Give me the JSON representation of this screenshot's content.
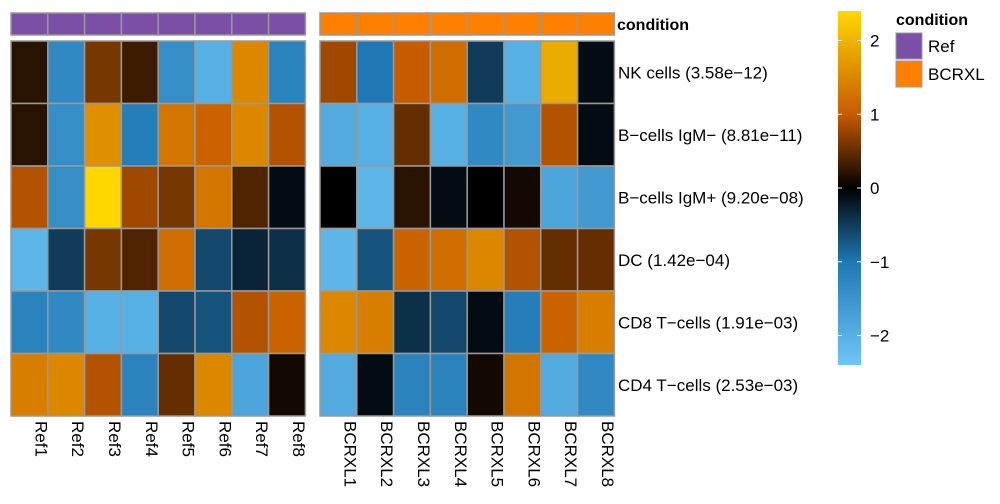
{
  "chart_data": {
    "type": "heatmap",
    "annotation_title": "condition",
    "groups": [
      {
        "name": "Ref",
        "color": "#7B4FA6",
        "columns": [
          "Ref1",
          "Ref2",
          "Ref3",
          "Ref4",
          "Ref5",
          "Ref6",
          "Ref7",
          "Ref8"
        ]
      },
      {
        "name": "BCRXL",
        "color": "#FF7F00",
        "columns": [
          "BCRXL1",
          "BCRXL2",
          "BCRXL3",
          "BCRXL4",
          "BCRXL5",
          "BCRXL6",
          "BCRXL7",
          "BCRXL8"
        ]
      }
    ],
    "rows": [
      "NK cells (3.58e−12)",
      "B−cells IgM− (8.81e−11)",
      "B−cells IgM+ (9.20e−08)",
      "DC (1.42e−04)",
      "CD8 T−cells (1.91e−03)",
      "CD4 T−cells (2.53e−03)"
    ],
    "values": [
      [
        0.2,
        -1.3,
        0.6,
        0.3,
        -1.4,
        -2.0,
        1.5,
        -1.2,
        0.8,
        -1.0,
        1.0,
        1.2,
        -0.5,
        -2.0,
        1.9,
        -0.1
      ],
      [
        0.2,
        -1.4,
        1.6,
        -1.1,
        1.3,
        1.1,
        1.5,
        0.9,
        -1.9,
        -2.0,
        0.5,
        -2.0,
        -1.3,
        -1.6,
        0.9,
        -0.1
      ],
      [
        0.9,
        -1.4,
        2.4,
        0.8,
        0.6,
        1.3,
        0.4,
        -0.1,
        0.0,
        -2.1,
        0.2,
        -0.1,
        0.0,
        0.1,
        -1.8,
        -1.6
      ],
      [
        -2.1,
        -0.5,
        0.6,
        0.4,
        1.2,
        -0.6,
        -0.3,
        -0.4,
        -2.1,
        -0.7,
        1.1,
        1.2,
        1.5,
        0.9,
        0.5,
        0.5
      ],
      [
        -1.2,
        -1.3,
        -2.0,
        -2.0,
        -0.6,
        -0.7,
        0.9,
        1.1,
        1.5,
        1.4,
        -0.4,
        -0.6,
        -0.1,
        -1.1,
        1.1,
        1.4
      ],
      [
        1.4,
        1.5,
        0.9,
        -1.2,
        0.5,
        1.5,
        -1.8,
        0.1,
        -1.9,
        -0.1,
        -1.2,
        -1.2,
        0.1,
        1.3,
        -1.9,
        -1.3
      ]
    ],
    "color_scale": {
      "stops": [
        {
          "value": -2.4,
          "color": "#6EC6F6"
        },
        {
          "value": -1.0,
          "color": "#1F78B4"
        },
        {
          "value": 0.0,
          "color": "#000000"
        },
        {
          "value": 1.0,
          "color": "#C75B00"
        },
        {
          "value": 2.4,
          "color": "#FFD700"
        }
      ],
      "ticks": [
        2,
        1,
        0,
        -1,
        -2
      ]
    },
    "legend": {
      "title": "condition",
      "entries": [
        "Ref",
        "BCRXL"
      ]
    }
  }
}
